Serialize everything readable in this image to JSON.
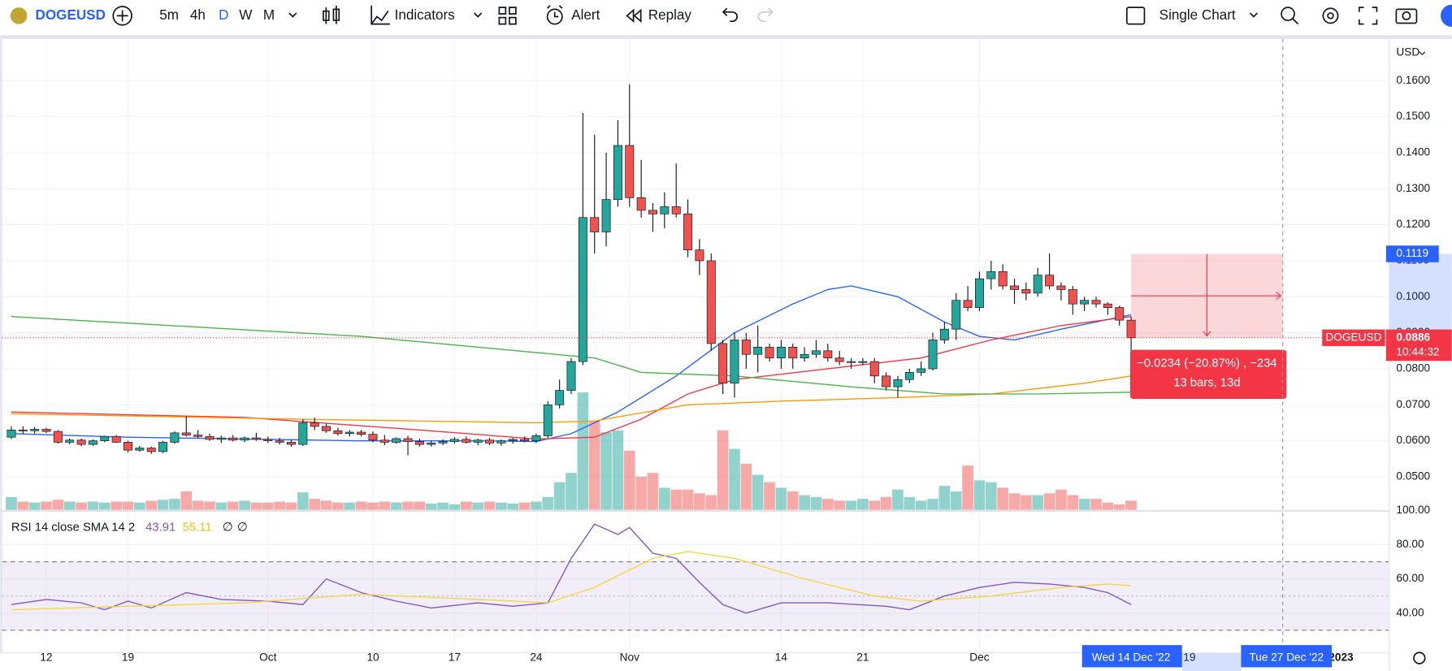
{
  "toolbar": {
    "symbol": "DOGEUSD",
    "intervals": [
      "5m",
      "4h",
      "D",
      "W",
      "M"
    ],
    "active_interval": 2,
    "indicators": "Indicators",
    "alert": "Alert",
    "replay": "Replay",
    "layout": "Single Chart"
  },
  "chart_data": {
    "type": "candlestick",
    "currency": "USD",
    "up_color": "#26a69a",
    "down_color": "#ef5350",
    "grid": true,
    "ylim": [
      0.0408,
      0.1716
    ],
    "yticks": [
      {
        "value": 0.05,
        "label": "0.0500"
      },
      {
        "value": 0.06,
        "label": "0.0600"
      },
      {
        "value": 0.07,
        "label": "0.0700"
      },
      {
        "value": 0.08,
        "label": "0.0800"
      },
      {
        "value": 0.09,
        "label": "0.0900"
      },
      {
        "value": 0.1,
        "label": "0.1000"
      },
      {
        "value": 0.11,
        "label": "0.1100"
      },
      {
        "value": 0.12,
        "label": "0.1200"
      },
      {
        "value": 0.13,
        "label": "0.1300"
      },
      {
        "value": 0.14,
        "label": "0.1400"
      },
      {
        "value": 0.15,
        "label": "0.1500"
      },
      {
        "value": 0.16,
        "label": "0.1600"
      }
    ],
    "xticks": [
      {
        "value": 3,
        "label": "12"
      },
      {
        "value": 10,
        "label": "19"
      },
      {
        "value": 22,
        "label": "Oct"
      },
      {
        "value": 31,
        "label": "10"
      },
      {
        "value": 38,
        "label": "17"
      },
      {
        "value": 45,
        "label": "24"
      },
      {
        "value": 53,
        "label": "Nov"
      },
      {
        "value": 66,
        "label": "14"
      },
      {
        "value": 73,
        "label": "21"
      },
      {
        "value": 83,
        "label": "Dec"
      },
      {
        "value": 101,
        "label": "19"
      },
      {
        "value": 114,
        "label": "2023"
      }
    ],
    "candles": [
      [
        0.061,
        0.064,
        0.0605,
        0.063
      ],
      [
        0.063,
        0.064,
        0.062,
        0.0628
      ],
      [
        0.0628,
        0.0638,
        0.062,
        0.0632
      ],
      [
        0.0632,
        0.0636,
        0.0622,
        0.0626
      ],
      [
        0.0626,
        0.063,
        0.0592,
        0.0596
      ],
      [
        0.0596,
        0.0606,
        0.059,
        0.0602
      ],
      [
        0.0602,
        0.0606,
        0.0585,
        0.059
      ],
      [
        0.059,
        0.0604,
        0.0586,
        0.06
      ],
      [
        0.06,
        0.0614,
        0.0596,
        0.0612
      ],
      [
        0.0612,
        0.0616,
        0.0594,
        0.0596
      ],
      [
        0.0596,
        0.06,
        0.0568,
        0.0574
      ],
      [
        0.0574,
        0.0586,
        0.057,
        0.058
      ],
      [
        0.058,
        0.0584,
        0.0564,
        0.057
      ],
      [
        0.057,
        0.06,
        0.0566,
        0.0596
      ],
      [
        0.0596,
        0.0626,
        0.0592,
        0.0622
      ],
      [
        0.0622,
        0.0668,
        0.0612,
        0.0616
      ],
      [
        0.0616,
        0.063,
        0.0606,
        0.0612
      ],
      [
        0.0612,
        0.062,
        0.06,
        0.0604
      ],
      [
        0.0604,
        0.0614,
        0.0594,
        0.0608
      ],
      [
        0.0608,
        0.0616,
        0.0598,
        0.0602
      ],
      [
        0.0602,
        0.0612,
        0.0596,
        0.0608
      ],
      [
        0.0608,
        0.0622,
        0.06,
        0.0604
      ],
      [
        0.0604,
        0.0612,
        0.0594,
        0.06
      ],
      [
        0.06,
        0.0608,
        0.059,
        0.0596
      ],
      [
        0.0596,
        0.0602,
        0.0584,
        0.059
      ],
      [
        0.059,
        0.066,
        0.0586,
        0.065
      ],
      [
        0.065,
        0.0664,
        0.063,
        0.064
      ],
      [
        0.064,
        0.0648,
        0.0622,
        0.0628
      ],
      [
        0.0628,
        0.0636,
        0.0614,
        0.062
      ],
      [
        0.062,
        0.063,
        0.0612,
        0.0624
      ],
      [
        0.0624,
        0.063,
        0.0612,
        0.0618
      ],
      [
        0.0618,
        0.0626,
        0.0596,
        0.0602
      ],
      [
        0.0602,
        0.0616,
        0.0588,
        0.0596
      ],
      [
        0.0596,
        0.061,
        0.0592,
        0.0606
      ],
      [
        0.0606,
        0.0614,
        0.056,
        0.0598
      ],
      [
        0.0598,
        0.0606,
        0.0584,
        0.059
      ],
      [
        0.059,
        0.06,
        0.0584,
        0.0594
      ],
      [
        0.0594,
        0.0604,
        0.0588,
        0.0598
      ],
      [
        0.0598,
        0.061,
        0.0592,
        0.0604
      ],
      [
        0.0604,
        0.0612,
        0.0592,
        0.0596
      ],
      [
        0.0596,
        0.0606,
        0.0588,
        0.0602
      ],
      [
        0.0602,
        0.0608,
        0.0588,
        0.0594
      ],
      [
        0.0594,
        0.0604,
        0.0586,
        0.06
      ],
      [
        0.06,
        0.0608,
        0.0592,
        0.0604
      ],
      [
        0.0604,
        0.0612,
        0.0596,
        0.06
      ],
      [
        0.06,
        0.062,
        0.0594,
        0.0614
      ],
      [
        0.0614,
        0.071,
        0.0608,
        0.07
      ],
      [
        0.07,
        0.077,
        0.069,
        0.074
      ],
      [
        0.074,
        0.083,
        0.073,
        0.082
      ],
      [
        0.082,
        0.151,
        0.081,
        0.122
      ],
      [
        0.122,
        0.145,
        0.112,
        0.118
      ],
      [
        0.118,
        0.14,
        0.114,
        0.127
      ],
      [
        0.127,
        0.149,
        0.125,
        0.142
      ],
      [
        0.142,
        0.159,
        0.125,
        0.1275
      ],
      [
        0.1275,
        0.138,
        0.122,
        0.124
      ],
      [
        0.124,
        0.126,
        0.118,
        0.123
      ],
      [
        0.123,
        0.129,
        0.119,
        0.125
      ],
      [
        0.125,
        0.137,
        0.122,
        0.123
      ],
      [
        0.123,
        0.127,
        0.111,
        0.113
      ],
      [
        0.113,
        0.116,
        0.106,
        0.11
      ],
      [
        0.11,
        0.112,
        0.085,
        0.087
      ],
      [
        0.087,
        0.088,
        0.073,
        0.076
      ],
      [
        0.076,
        0.09,
        0.072,
        0.088
      ],
      [
        0.088,
        0.09,
        0.08,
        0.084
      ],
      [
        0.084,
        0.092,
        0.079,
        0.086
      ],
      [
        0.086,
        0.087,
        0.082,
        0.083
      ],
      [
        0.083,
        0.088,
        0.08,
        0.086
      ],
      [
        0.086,
        0.087,
        0.08,
        0.083
      ],
      [
        0.083,
        0.086,
        0.082,
        0.084
      ],
      [
        0.084,
        0.088,
        0.083,
        0.085
      ],
      [
        0.085,
        0.087,
        0.082,
        0.083
      ],
      [
        0.083,
        0.085,
        0.081,
        0.082
      ],
      [
        0.082,
        0.083,
        0.08,
        0.082
      ],
      [
        0.082,
        0.083,
        0.081,
        0.082
      ],
      [
        0.082,
        0.083,
        0.076,
        0.078
      ],
      [
        0.078,
        0.079,
        0.074,
        0.075
      ],
      [
        0.075,
        0.078,
        0.072,
        0.077
      ],
      [
        0.077,
        0.08,
        0.076,
        0.079
      ],
      [
        0.079,
        0.082,
        0.078,
        0.08
      ],
      [
        0.08,
        0.09,
        0.0795,
        0.088
      ],
      [
        0.088,
        0.093,
        0.087,
        0.091
      ],
      [
        0.091,
        0.101,
        0.088,
        0.099
      ],
      [
        0.099,
        0.103,
        0.096,
        0.097
      ],
      [
        0.097,
        0.107,
        0.096,
        0.105
      ],
      [
        0.105,
        0.11,
        0.102,
        0.107
      ],
      [
        0.107,
        0.109,
        0.102,
        0.103
      ],
      [
        0.103,
        0.105,
        0.098,
        0.102
      ],
      [
        0.102,
        0.104,
        0.099,
        0.101
      ],
      [
        0.101,
        0.108,
        0.1,
        0.106
      ],
      [
        0.106,
        0.112,
        0.102,
        0.103
      ],
      [
        0.103,
        0.104,
        0.099,
        0.102
      ],
      [
        0.102,
        0.103,
        0.095,
        0.098
      ],
      [
        0.098,
        0.1,
        0.096,
        0.099
      ],
      [
        0.099,
        0.1,
        0.097,
        0.098
      ],
      [
        0.098,
        0.0985,
        0.095,
        0.097
      ],
      [
        0.097,
        0.0975,
        0.092,
        0.0935
      ],
      [
        0.0935,
        0.0945,
        0.085,
        0.0886
      ]
    ],
    "volume": [
      14,
      9,
      8,
      9,
      11,
      9,
      8,
      9,
      8,
      9,
      9,
      8,
      10,
      11,
      12,
      20,
      10,
      9,
      8,
      9,
      10,
      8,
      8,
      9,
      8,
      19,
      12,
      10,
      8,
      8,
      9,
      8,
      9,
      8,
      9,
      9,
      7,
      8,
      6,
      9,
      8,
      9,
      8,
      7,
      8,
      9,
      14,
      30,
      40,
      127,
      96,
      84,
      86,
      64,
      36,
      40,
      24,
      22,
      22,
      18,
      16,
      86,
      66,
      50,
      38,
      30,
      24,
      20,
      16,
      14,
      12,
      10,
      10,
      12,
      10,
      14,
      22,
      14,
      10,
      12,
      26,
      20,
      48,
      32,
      30,
      24,
      18,
      16,
      16,
      18,
      22,
      16,
      12,
      12,
      8,
      6,
      10
    ],
    "moving_averages": [
      {
        "color": "#2962ff",
        "x": [
          0,
          10,
          20,
          30,
          40,
          45,
          48,
          52,
          57,
          62,
          67,
          70,
          72,
          76,
          80,
          83,
          86,
          90,
          96
        ],
        "values": [
          0.062,
          0.061,
          0.0605,
          0.06,
          0.06,
          0.0598,
          0.062,
          0.068,
          0.078,
          0.09,
          0.098,
          0.102,
          0.103,
          0.1,
          0.093,
          0.089,
          0.088,
          0.091,
          0.095
        ]
      },
      {
        "color": "#f23645",
        "x": [
          0,
          20,
          35,
          45,
          50,
          54,
          58,
          62,
          70,
          78,
          84,
          90,
          96
        ],
        "values": [
          0.068,
          0.0665,
          0.063,
          0.0605,
          0.061,
          0.066,
          0.073,
          0.077,
          0.08,
          0.083,
          0.088,
          0.092,
          0.0945
        ]
      },
      {
        "color": "#ff9800",
        "x": [
          0,
          25,
          45,
          50,
          58,
          66,
          76,
          84,
          92,
          96
        ],
        "values": [
          0.0675,
          0.066,
          0.065,
          0.0655,
          0.07,
          0.071,
          0.072,
          0.073,
          0.076,
          0.078
        ]
      },
      {
        "color": "#4caf50",
        "x": [
          0,
          30,
          50,
          54,
          62,
          72,
          80,
          88,
          96
        ],
        "values": [
          0.0945,
          0.089,
          0.083,
          0.079,
          0.078,
          0.075,
          0.073,
          0.073,
          0.0735
        ]
      }
    ],
    "position": {
      "start": 96,
      "end": 109,
      "entry": 0.0886,
      "target": 0.1119,
      "symbol_label": "DOGEUSD",
      "countdown": "10:44:32",
      "summary": "−0.0234 (−20.87%) , −234",
      "duration": "13 bars, 13d",
      "start_label": "Wed 14 Dec '22",
      "end_label": "Tue 27 Dec '22"
    },
    "rsi": {
      "type": "line",
      "legend": "RSI 14 close SMA 14 2",
      "legend_values": [
        "43.91",
        "55.11",
        "∅",
        "∅"
      ],
      "ylim": [
        17,
        99.2
      ],
      "yticks": [
        {
          "value": 40,
          "label": "40.00"
        },
        {
          "value": 60,
          "label": "60.00"
        },
        {
          "value": 80,
          "label": "80.00"
        },
        {
          "value": 100,
          "label": "100.00"
        }
      ],
      "band": [
        30,
        50,
        70
      ],
      "series": [
        {
          "color": "#7e57c2",
          "x": [
            0,
            3,
            6,
            8,
            10,
            12,
            15,
            18,
            22,
            25,
            27,
            30,
            33,
            36,
            40,
            43,
            46,
            48,
            50,
            52,
            53,
            55,
            57,
            59,
            61,
            63,
            66,
            70,
            75,
            77,
            80,
            83,
            86,
            89,
            92,
            94,
            96
          ],
          "values": [
            45,
            48,
            46,
            42,
            47,
            43,
            52,
            48,
            47,
            45,
            60,
            52,
            47,
            43,
            46,
            44,
            46,
            72,
            92,
            86,
            90,
            75,
            72,
            58,
            45,
            40,
            46,
            46,
            44,
            42,
            50,
            55,
            58,
            57,
            55,
            52,
            45
          ]
        },
        {
          "color": "#f5d63d",
          "x": [
            0,
            20,
            30,
            40,
            46,
            50,
            55,
            58,
            62,
            68,
            74,
            78,
            84,
            90,
            94,
            96
          ],
          "values": [
            42,
            46,
            51,
            48,
            46,
            55,
            72,
            76,
            72,
            60,
            50,
            47,
            50,
            55,
            57,
            56
          ]
        }
      ]
    }
  }
}
